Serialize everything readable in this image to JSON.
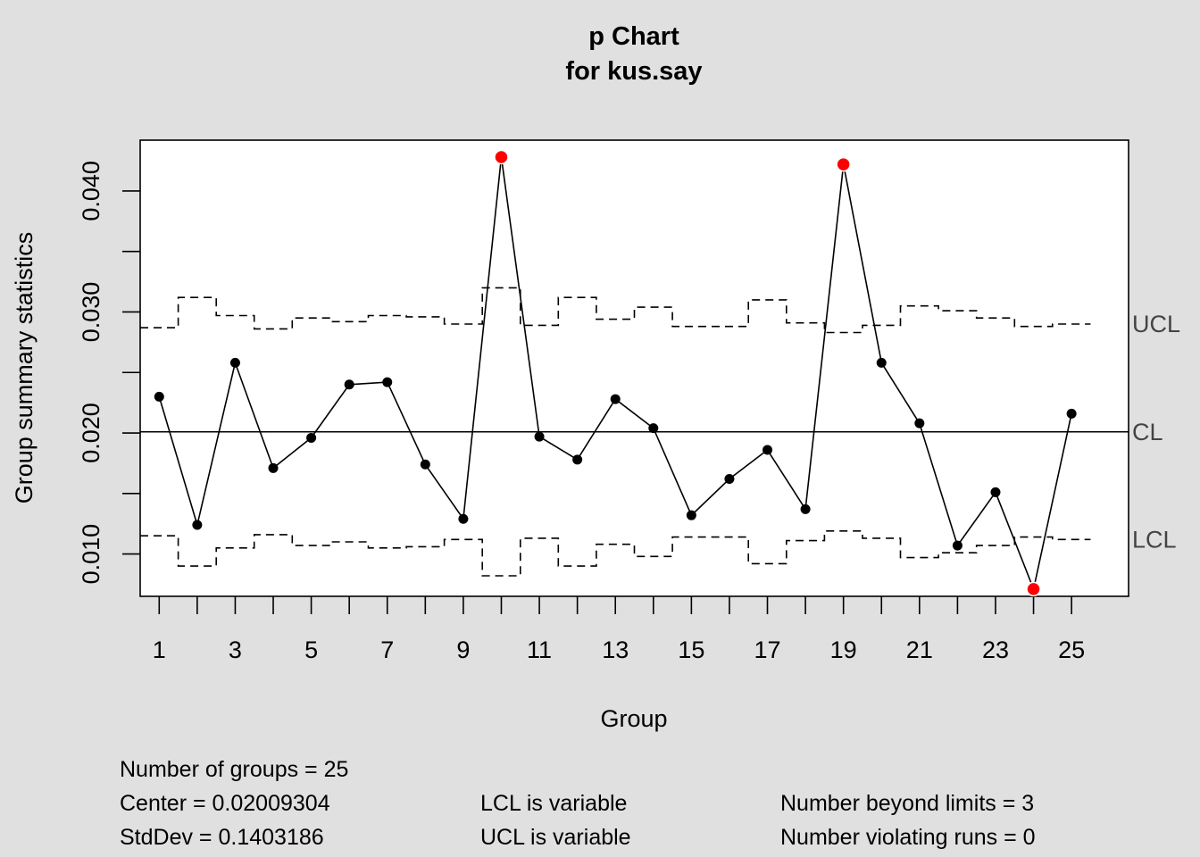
{
  "chart_data": {
    "type": "line",
    "title": "p Chart",
    "subtitle": "for kus.say",
    "xlabel": "Group",
    "ylabel": "Group summary statistics",
    "x": [
      1,
      2,
      3,
      4,
      5,
      6,
      7,
      8,
      9,
      10,
      11,
      12,
      13,
      14,
      15,
      16,
      17,
      18,
      19,
      20,
      21,
      22,
      23,
      24,
      25
    ],
    "x_tick_labels": [
      "1",
      "3",
      "5",
      "7",
      "9",
      "11",
      "13",
      "15",
      "17",
      "19",
      "21",
      "23",
      "25"
    ],
    "y_tick_labels": [
      "0.010",
      "0.020",
      "0.030",
      "0.040"
    ],
    "y_ticks": [
      0.01,
      0.02,
      0.03,
      0.04
    ],
    "xlim": [
      0.5,
      26.5
    ],
    "ylim": [
      0.0065,
      0.0442
    ],
    "values": [
      0.023,
      0.0124,
      0.0258,
      0.0171,
      0.0196,
      0.024,
      0.0242,
      0.0174,
      0.0129,
      0.0428,
      0.0197,
      0.0178,
      0.0228,
      0.0204,
      0.0132,
      0.0162,
      0.0186,
      0.0137,
      0.0422,
      0.0258,
      0.0208,
      0.0107,
      0.0151,
      0.0071,
      0.0216
    ],
    "ucl": [
      0.0287,
      0.0312,
      0.0297,
      0.0286,
      0.0295,
      0.0292,
      0.0297,
      0.0296,
      0.029,
      0.032,
      0.0289,
      0.0312,
      0.0294,
      0.0304,
      0.0288,
      0.0288,
      0.031,
      0.0291,
      0.0283,
      0.0289,
      0.0305,
      0.0301,
      0.0295,
      0.0288,
      0.029
    ],
    "lcl": [
      0.0115,
      0.009,
      0.0105,
      0.0116,
      0.0107,
      0.011,
      0.0105,
      0.0106,
      0.0112,
      0.0082,
      0.0113,
      0.009,
      0.0108,
      0.0098,
      0.0114,
      0.0114,
      0.0092,
      0.0111,
      0.0119,
      0.0113,
      0.0097,
      0.0101,
      0.0107,
      0.0114,
      0.0112
    ],
    "center": 0.02009304,
    "out_of_control_groups": [
      10,
      19,
      24
    ],
    "line_labels": {
      "ucl": "UCL",
      "cl": "CL",
      "lcl": "LCL"
    },
    "colors": {
      "points": "#000000",
      "violations": "#ff0000",
      "background": "#e0e0e0",
      "panel": "#ffffff"
    }
  },
  "stats": {
    "groups": "Number of groups = 25",
    "center": "Center = 0.02009304",
    "stddev": "StdDev = 0.1403186",
    "lcl_note": "LCL is variable",
    "ucl_note": "UCL is variable",
    "beyond": "Number beyond limits = 3",
    "runs": "Number violating runs = 0"
  }
}
